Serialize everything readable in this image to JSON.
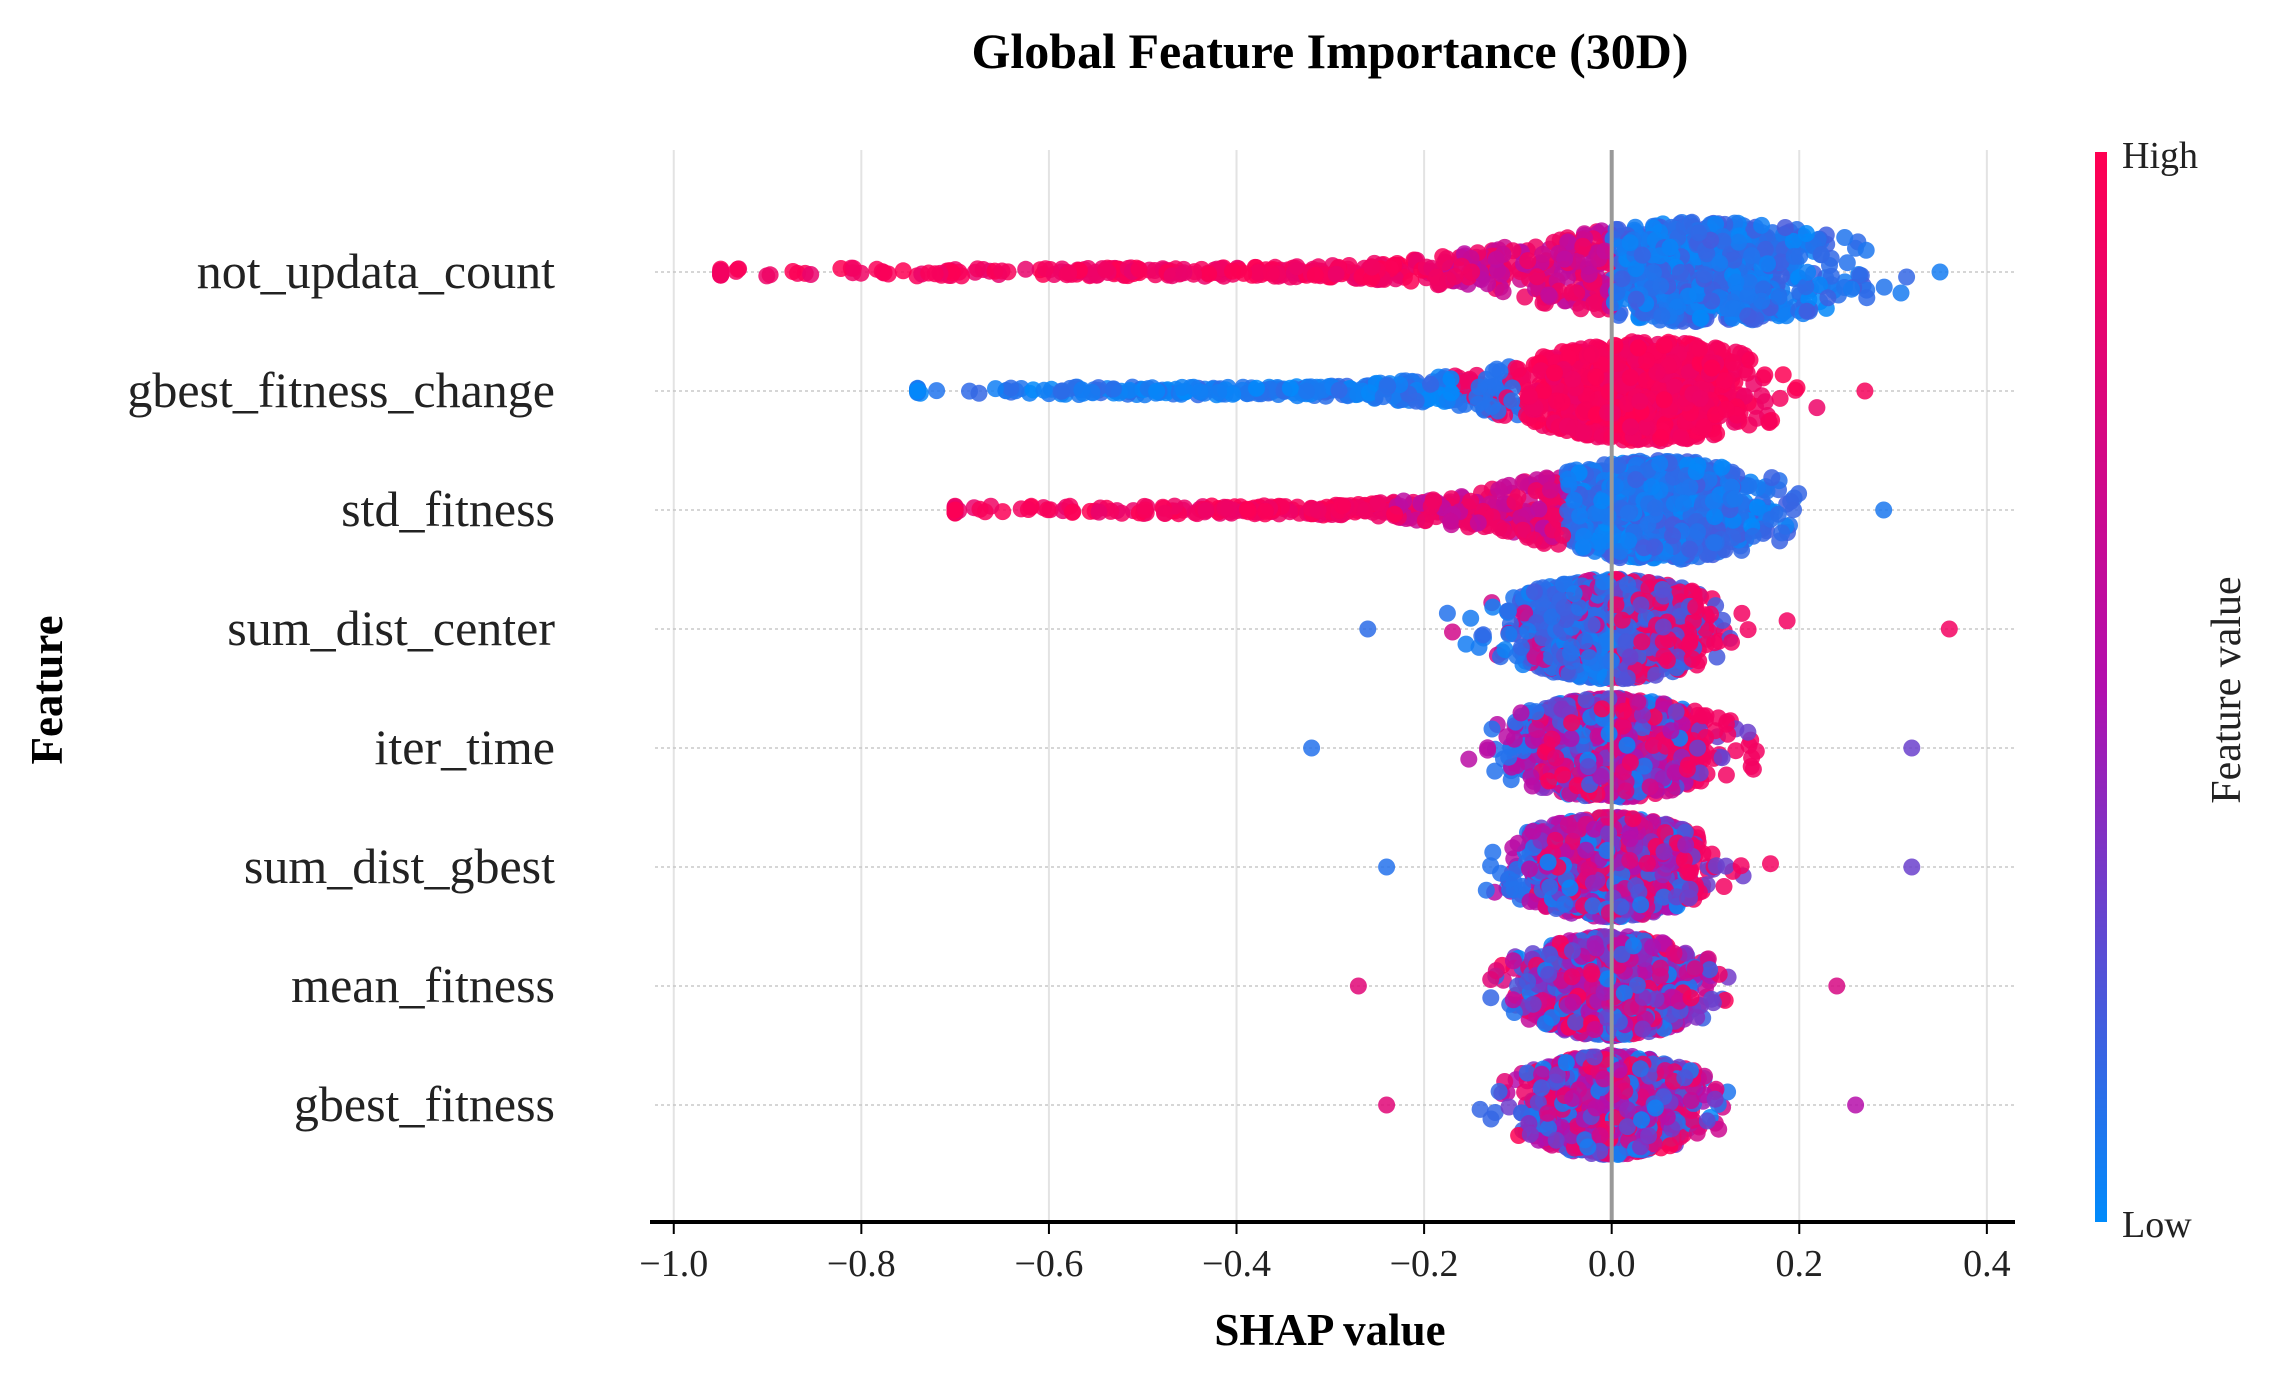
{
  "chart_data": {
    "type": "scatter",
    "subtype": "shap-beeswarm",
    "title": "Global Feature Importance (30D)",
    "xlabel": "SHAP value",
    "ylabel": "Feature",
    "xlim": [
      -1.02,
      0.43
    ],
    "xticks": [
      {
        "value": -1.0,
        "label": "−1.0"
      },
      {
        "value": -0.8,
        "label": "−0.8"
      },
      {
        "value": -0.6,
        "label": "−0.6"
      },
      {
        "value": -0.4,
        "label": "−0.4"
      },
      {
        "value": -0.2,
        "label": "−0.2"
      },
      {
        "value": 0.0,
        "label": "0.0"
      },
      {
        "value": 0.2,
        "label": "0.2"
      },
      {
        "value": 0.4,
        "label": "0.4"
      }
    ],
    "grid": true,
    "colorbar": {
      "title": "Feature value",
      "high_label": "High",
      "low_label": "Low",
      "high_color": "#ff0052",
      "low_color": "#008bfb",
      "mid_color": "#b20fae"
    },
    "features": [
      {
        "name": "not_updata_count",
        "min": -0.95,
        "max": 0.35,
        "center": 0.1,
        "spread": 0.13,
        "color_mode": "neg_high"
      },
      {
        "name": "gbest_fitness_change",
        "min": -0.74,
        "max": 0.27,
        "center": 0.04,
        "spread": 0.1,
        "color_mode": "neg_low"
      },
      {
        "name": "std_fitness",
        "min": -0.7,
        "max": 0.29,
        "center": 0.05,
        "spread": 0.1,
        "color_mode": "neg_high"
      },
      {
        "name": "sum_dist_center",
        "min": -0.26,
        "max": 0.36,
        "center": 0.0,
        "spread": 0.09,
        "color_mode": "pos_high"
      },
      {
        "name": "iter_time",
        "min": -0.32,
        "max": 0.32,
        "center": 0.0,
        "spread": 0.085,
        "color_mode": "pos_high_mixed"
      },
      {
        "name": "sum_dist_gbest",
        "min": -0.24,
        "max": 0.32,
        "center": 0.0,
        "spread": 0.08,
        "color_mode": "pos_high_mixed"
      },
      {
        "name": "mean_fitness",
        "min": -0.27,
        "max": 0.24,
        "center": 0.0,
        "spread": 0.075,
        "color_mode": "mixed"
      },
      {
        "name": "gbest_fitness",
        "min": -0.24,
        "max": 0.26,
        "center": 0.0,
        "spread": 0.075,
        "color_mode": "mixed"
      }
    ]
  }
}
